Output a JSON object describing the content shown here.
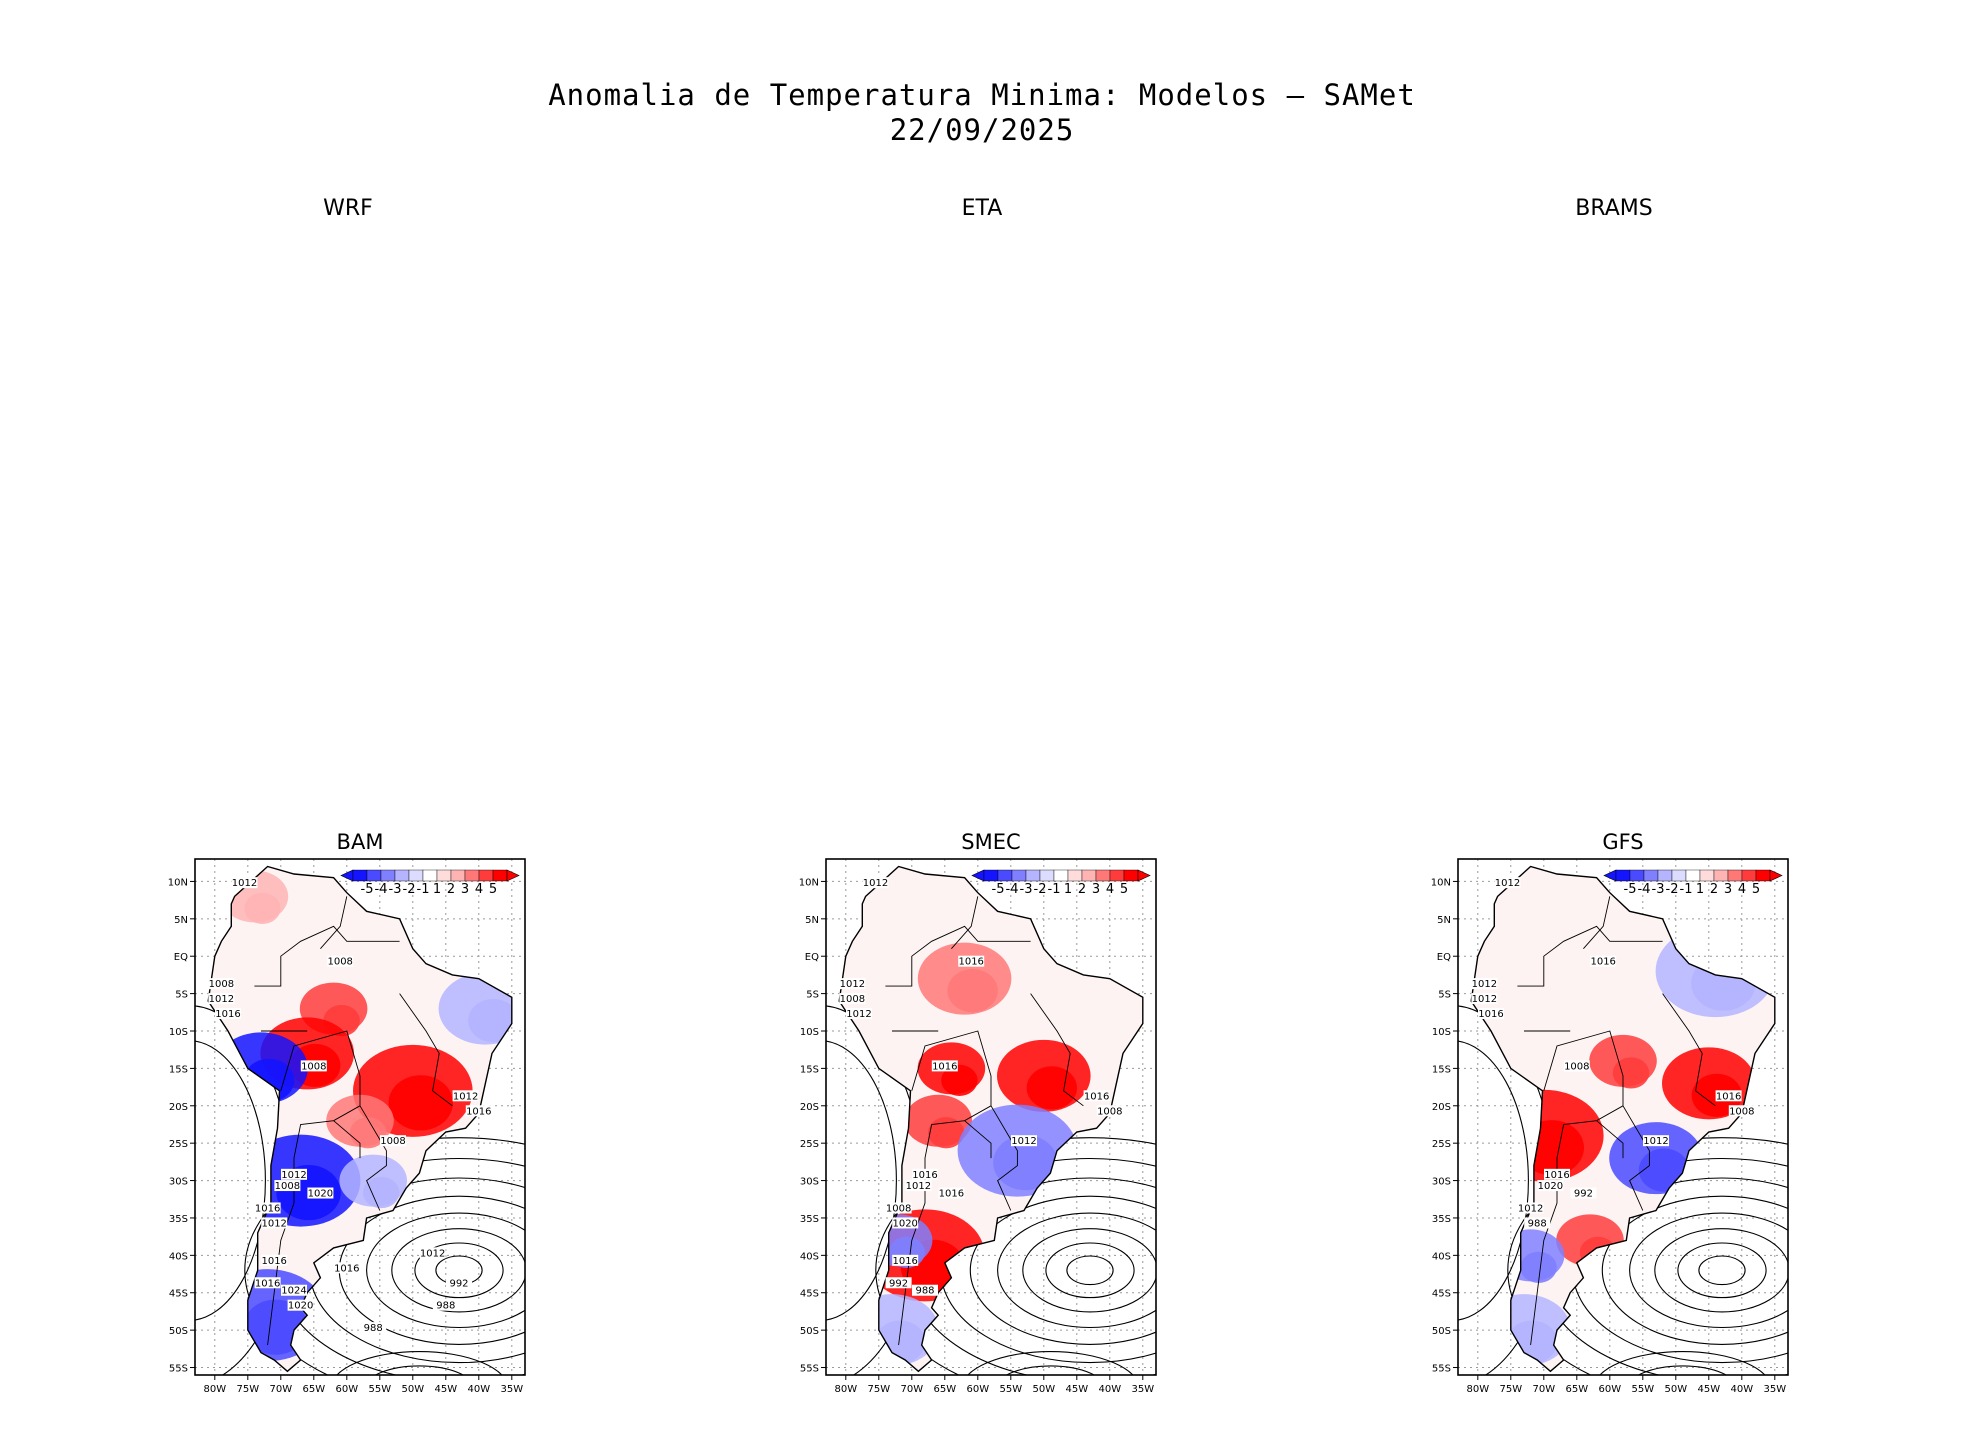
{
  "figure": {
    "title_line1": "Anomalia de Temperatura Minima: Modelos – SAMet",
    "title_line2": "22/09/2025"
  },
  "empty_panels": [
    {
      "label": "WRF"
    },
    {
      "label": "ETA"
    },
    {
      "label": "BRAMS"
    }
  ],
  "chart_data": [
    {
      "type": "heatmap",
      "title": "BAM",
      "variable": "minimum temperature anomaly (°C) with sea level pressure contours (hPa)",
      "x_range": [
        -83,
        -33
      ],
      "y_range": [
        -56,
        13
      ],
      "x_ticks": [
        "80W",
        "75W",
        "70W",
        "65W",
        "60W",
        "55W",
        "50W",
        "45W",
        "40W",
        "35W"
      ],
      "y_ticks": [
        "10N",
        "5N",
        "EQ",
        "5S",
        "10S",
        "15S",
        "20S",
        "25S",
        "30S",
        "35S",
        "40S",
        "45S",
        "50S",
        "55S"
      ],
      "colorbar_labels": [
        "-5",
        "-4",
        "-3",
        "-2",
        "-1",
        "1",
        "2",
        "3",
        "4",
        "5"
      ],
      "contour_labels": [
        "1012",
        "1008",
        "1008",
        "1012",
        "1016",
        "1008",
        "1012",
        "1016",
        "1008",
        "1012",
        "1008",
        "1016",
        "1020",
        "1012",
        "1016",
        "1016",
        "1024",
        "1020",
        "1016",
        "1012",
        "992",
        "988",
        "988"
      ],
      "anomaly_regions": [
        {
          "lon": -62,
          "lat": -7,
          "value": 3
        },
        {
          "lon": -66,
          "lat": -13,
          "value": 4
        },
        {
          "lon": -50,
          "lat": -18,
          "value": 4
        },
        {
          "lon": -58,
          "lat": -22,
          "value": 2
        },
        {
          "lon": -73,
          "lat": -15,
          "value": -5
        },
        {
          "lon": -67,
          "lat": -30,
          "value": -5
        },
        {
          "lon": -56,
          "lat": -30,
          "value": -2
        },
        {
          "lon": -39,
          "lat": -7,
          "value": -2
        },
        {
          "lon": -72,
          "lat": -48,
          "value": -4
        },
        {
          "lon": -74,
          "lat": 8,
          "value": 1
        }
      ]
    },
    {
      "type": "heatmap",
      "title": "SMEC",
      "variable": "minimum temperature anomaly (°C) with sea level pressure contours (hPa)",
      "x_range": [
        -83,
        -33
      ],
      "y_range": [
        -56,
        13
      ],
      "x_ticks": [
        "80W",
        "75W",
        "70W",
        "65W",
        "60W",
        "55W",
        "50W",
        "45W",
        "40W",
        "35W"
      ],
      "y_ticks": [
        "10N",
        "5N",
        "EQ",
        "5S",
        "10S",
        "15S",
        "20S",
        "25S",
        "30S",
        "35S",
        "40S",
        "45S",
        "50S",
        "55S"
      ],
      "colorbar_labels": [
        "-5",
        "-4",
        "-3",
        "-2",
        "-1",
        "1",
        "2",
        "3",
        "4",
        "5"
      ],
      "contour_labels": [
        "1012",
        "1016",
        "1012",
        "1008",
        "1012",
        "1016",
        "1016",
        "1008",
        "1012",
        "1016",
        "1012",
        "1008",
        "1016",
        "1020",
        "1016",
        "992",
        "988"
      ],
      "anomaly_regions": [
        {
          "lon": -64,
          "lat": -15,
          "value": 4
        },
        {
          "lon": -50,
          "lat": -16,
          "value": 4
        },
        {
          "lon": -68,
          "lat": -40,
          "value": 4
        },
        {
          "lon": -66,
          "lat": -22,
          "value": 3
        },
        {
          "lon": -62,
          "lat": -3,
          "value": 2
        },
        {
          "lon": -54,
          "lat": -26,
          "value": -3
        },
        {
          "lon": -72,
          "lat": -38,
          "value": -3
        },
        {
          "lon": -73,
          "lat": -50,
          "value": -2
        }
      ]
    },
    {
      "type": "heatmap",
      "title": "GFS",
      "variable": "minimum temperature anomaly (°C) with sea level pressure contours (hPa)",
      "x_range": [
        -83,
        -33
      ],
      "y_range": [
        -56,
        13
      ],
      "x_ticks": [
        "80W",
        "75W",
        "70W",
        "65W",
        "60W",
        "55W",
        "50W",
        "45W",
        "40W",
        "35W"
      ],
      "y_ticks": [
        "10N",
        "5N",
        "EQ",
        "5S",
        "10S",
        "15S",
        "20S",
        "25S",
        "30S",
        "35S",
        "40S",
        "45S",
        "50S",
        "55S"
      ],
      "colorbar_labels": [
        "-5",
        "-4",
        "-3",
        "-2",
        "-1",
        "1",
        "2",
        "3",
        "4",
        "5"
      ],
      "contour_labels": [
        "1012",
        "1016",
        "1012",
        "1012",
        "1016",
        "1008",
        "1016",
        "1008",
        "1012",
        "1016",
        "1020",
        "1012",
        "992",
        "988"
      ],
      "anomaly_regions": [
        {
          "lon": -58,
          "lat": -14,
          "value": 3
        },
        {
          "lon": -45,
          "lat": -17,
          "value": 4
        },
        {
          "lon": -70,
          "lat": -24,
          "value": 4
        },
        {
          "lon": -63,
          "lat": -38,
          "value": 3
        },
        {
          "lon": -53,
          "lat": -27,
          "value": -4
        },
        {
          "lon": -44,
          "lat": -2,
          "value": -2
        },
        {
          "lon": -72,
          "lat": -40,
          "value": -3
        },
        {
          "lon": -73,
          "lat": -50,
          "value": -2
        }
      ]
    }
  ]
}
